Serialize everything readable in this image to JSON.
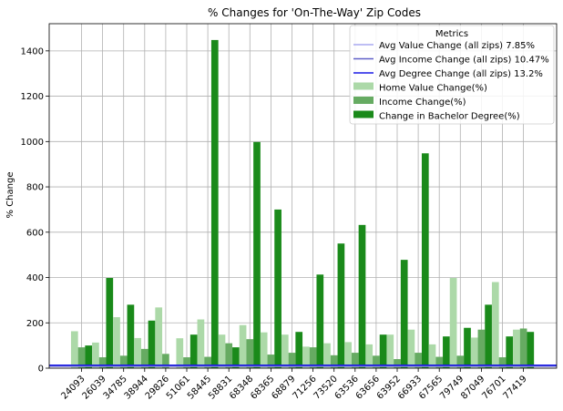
{
  "chart_data": {
    "type": "bar",
    "title": "% Changes for 'On-The-Way' Zip Codes",
    "xlabel": "",
    "ylabel": "% Change",
    "ylim": [
      0,
      1520
    ],
    "yticks": [
      0,
      200,
      400,
      600,
      800,
      1000,
      1200,
      1400
    ],
    "grid": true,
    "legend_position": "top-right",
    "legend_title": "Metrics",
    "categories": [
      "24093",
      "26039",
      "34785",
      "38944",
      "29826",
      "51061",
      "58445",
      "58831",
      "68348",
      "68365",
      "68879",
      "71256",
      "73520",
      "63536",
      "63656",
      "63952",
      "66933",
      "67565",
      "79749",
      "87049",
      "76701",
      "77419"
    ],
    "series": [
      {
        "name": "Home Value Change(%)",
        "color": "#acd9a8",
        "values": [
          163,
          113,
          225,
          133,
          268,
          132,
          215,
          148,
          190,
          158,
          148,
          95,
          110,
          115,
          105,
          148,
          170,
          105,
          398,
          135,
          380,
          170
        ]
      },
      {
        "name": "Income Change(%)",
        "color": "#66ab62",
        "values": [
          92,
          48,
          55,
          85,
          63,
          48,
          50,
          110,
          128,
          60,
          68,
          92,
          57,
          68,
          55,
          40,
          68,
          50,
          55,
          170,
          48,
          175
        ]
      },
      {
        "name": "Change in Bachelor Degree(%)",
        "color": "#1a8a1a",
        "values": [
          100,
          398,
          280,
          210,
          0,
          148,
          1448,
          92,
          998,
          700,
          160,
          413,
          550,
          632,
          148,
          478,
          948,
          140,
          178,
          280,
          140,
          160
        ]
      }
    ],
    "reference_lines": [
      {
        "name": "Avg Value Change (all zips) 7.85%",
        "value": 7.85,
        "color": "#a8a8f0"
      },
      {
        "name": "Avg Income Change (all zips) 10.47%",
        "value": 10.47,
        "color": "#6060c8"
      },
      {
        "name": "Avg Degree Change (all zips) 13.2%",
        "value": 13.2,
        "color": "#1a1ae6"
      }
    ]
  }
}
